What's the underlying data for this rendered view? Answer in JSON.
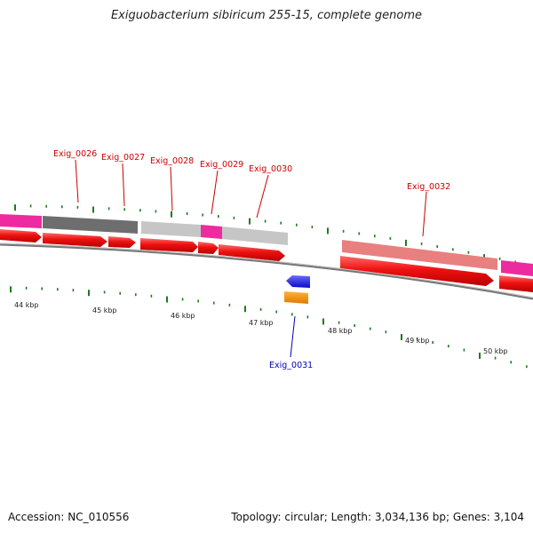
{
  "title": "Exiguobacterium sibiricum 255-15, complete genome",
  "footer": {
    "accession": "Accession: NC_010556",
    "summary": "Topology: circular; Length: 3,034,136 bp; Genes: 3,104"
  },
  "colors": {
    "forward_gene": "#ee1111",
    "reverse_gene": "#1a1aee",
    "orange_gene": "#f08a00",
    "backbone": "#888888",
    "tick": "#1f7a1f",
    "label_forward": "#cc0000",
    "label_reverse": "#0000bb",
    "magenta_block": "#ee2aa0",
    "dark_gray_block": "#6e6e6e",
    "light_gray_block": "#c6c6c6",
    "salmon_block": "#e88080"
  },
  "scale_labels": [
    "44 kbp",
    "45 kbp",
    "46 kbp",
    "47 kbp",
    "48 kbp",
    "49 kbp",
    "50 kbp"
  ],
  "gene_labels": {
    "g26": "Exig_0026",
    "g27": "Exig_0027",
    "g28": "Exig_0028",
    "g29": "Exig_0029",
    "g30": "Exig_0030",
    "g31": "Exig_0031",
    "g32": "Exig_0032"
  }
}
